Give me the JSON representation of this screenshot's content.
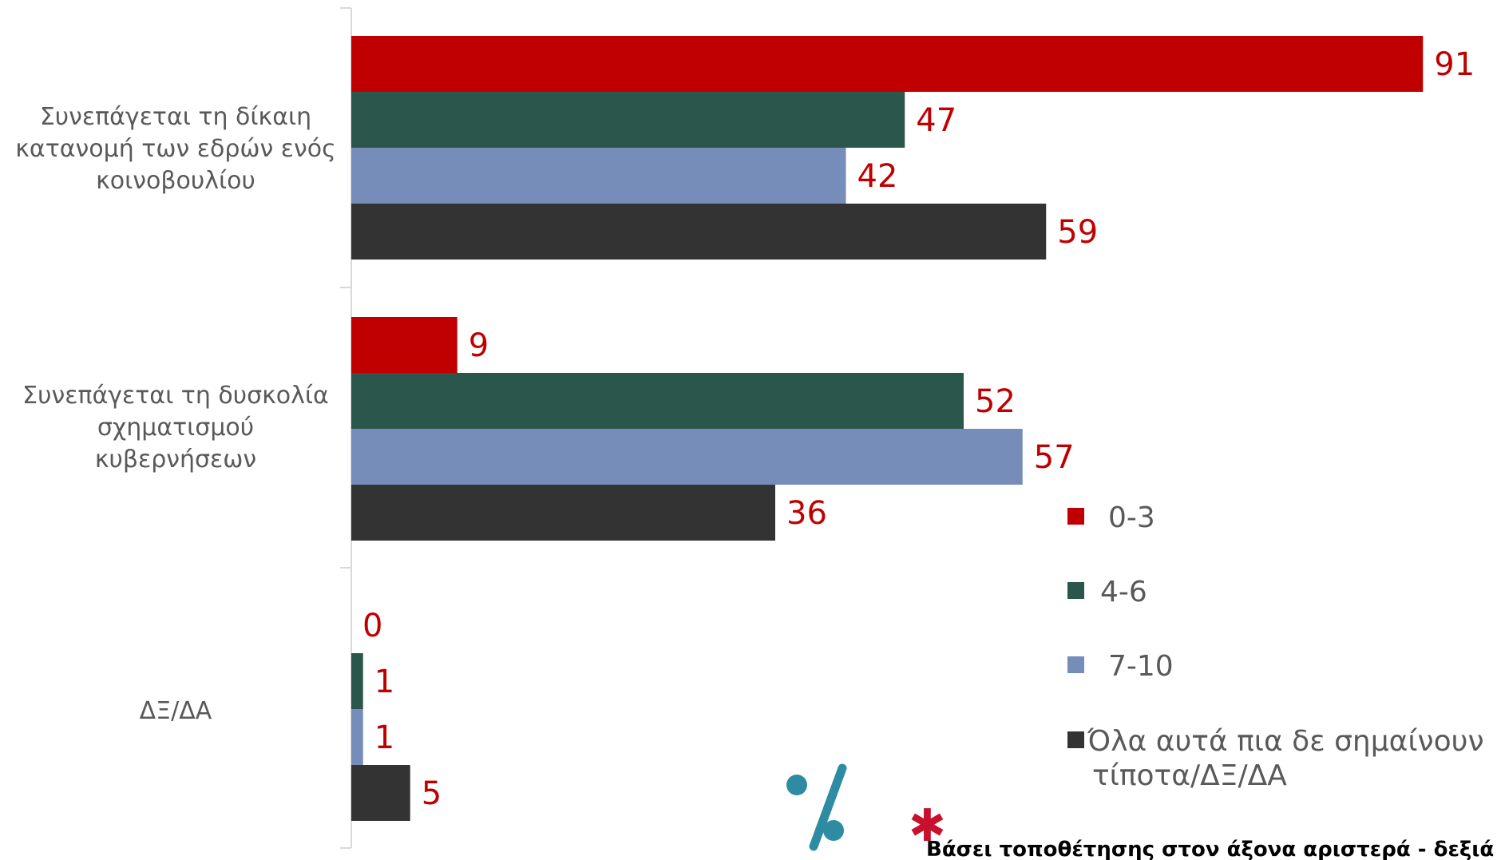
{
  "colors": {
    "series_0_3": "#c00000",
    "series_4_6": "#2a564c",
    "series_7_10": "#768cb9",
    "series_none": "#333333",
    "value_label": "#c00000",
    "axis": "#d9d9d9",
    "percent_icon": "#2e8ca2",
    "asterisk": "#c8102e"
  },
  "chart_data": {
    "type": "bar",
    "orientation": "horizontal",
    "categories": [
      [
        "Συνεπάγεται τη δίκαιη",
        "κατανομή των εδρών ενός",
        "κοινοβουλίου"
      ],
      [
        "Συνεπάγεται τη δυσκολία",
        "σχηματισμού",
        "κυβερνήσεων"
      ],
      [
        "ΔΞ/ΔΑ"
      ]
    ],
    "series": [
      {
        "name": "0-3",
        "values": [
          91,
          9,
          0
        ]
      },
      {
        "name": "4-6",
        "values": [
          47,
          52,
          1
        ]
      },
      {
        "name": "7-10",
        "values": [
          42,
          57,
          1
        ]
      },
      {
        "name": "Όλα αυτά πια δε σημαίνουν τίποτα/ΔΞ/ΔΑ",
        "values": [
          59,
          36,
          5
        ]
      }
    ],
    "xlim": [
      0,
      100
    ],
    "legend": {
      "position": "right",
      "entries": [
        [
          "0-3"
        ],
        [
          "4-6"
        ],
        [
          "7-10"
        ],
        [
          "Όλα αυτά πια δε σημαίνουν",
          "τίποτα/ΔΞ/ΔΑ"
        ]
      ]
    },
    "grid": false
  },
  "footnote": {
    "percent_symbol": "%",
    "asterisk": "✱",
    "text": "Βάσει τοποθέτησης στον άξονα αριστερά - δεξιά"
  }
}
